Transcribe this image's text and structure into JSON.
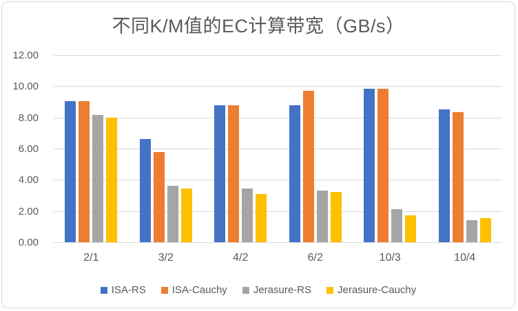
{
  "title": "不同K/M值的EC计算带宽（GB/s）",
  "chart_data": {
    "type": "bar",
    "categories": [
      "2/1",
      "3/2",
      "4/2",
      "6/2",
      "10/3",
      "10/4"
    ],
    "series": [
      {
        "name": "ISA-RS",
        "color": "#4472C4",
        "values": [
          9.05,
          6.6,
          8.8,
          8.8,
          9.85,
          8.5
        ]
      },
      {
        "name": "ISA-Cauchy",
        "color": "#ED7D31",
        "values": [
          9.05,
          5.8,
          8.8,
          9.7,
          9.85,
          8.35
        ]
      },
      {
        "name": "Jerasure-RS",
        "color": "#A5A5A5",
        "values": [
          8.15,
          3.6,
          3.45,
          3.3,
          2.1,
          1.4
        ]
      },
      {
        "name": "Jerasure-Cauchy",
        "color": "#FFC000",
        "values": [
          8.0,
          3.45,
          3.1,
          3.2,
          1.7,
          1.55
        ]
      }
    ],
    "title": "不同K/M值的EC计算带宽（GB/s）",
    "xlabel": "",
    "ylabel": "",
    "ylim": [
      0,
      12
    ],
    "ytick_step": 2,
    "ytick_labels": [
      "0.00",
      "2.00",
      "4.00",
      "6.00",
      "8.00",
      "10.00",
      "12.00"
    ],
    "grid": true,
    "legend_position": "bottom"
  },
  "colors": {
    "grid": "#D9D9D9",
    "text": "#595959",
    "border": "#D9D9D9",
    "background": "#FFFFFF"
  }
}
